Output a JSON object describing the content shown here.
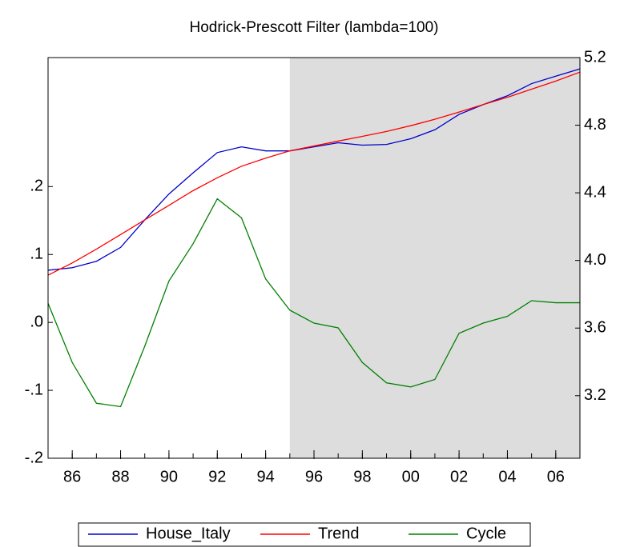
{
  "chart_data": {
    "type": "line",
    "title": "Hodrick-Prescott Filter (lambda=100)",
    "x": [
      1985,
      1986,
      1987,
      1988,
      1989,
      1990,
      1991,
      1992,
      1993,
      1994,
      1995,
      1996,
      1997,
      1998,
      1999,
      2000,
      2001,
      2002,
      2003,
      2004,
      2005,
      2006,
      2007
    ],
    "xlim": [
      1985,
      2007
    ],
    "xticks": [
      {
        "value": 1986,
        "label": "86"
      },
      {
        "value": 1988,
        "label": "88"
      },
      {
        "value": 1990,
        "label": "90"
      },
      {
        "value": 1992,
        "label": "92"
      },
      {
        "value": 1994,
        "label": "94"
      },
      {
        "value": 1996,
        "label": "96"
      },
      {
        "value": 1998,
        "label": "98"
      },
      {
        "value": 2000,
        "label": "00"
      },
      {
        "value": 2002,
        "label": "02"
      },
      {
        "value": 2004,
        "label": "04"
      },
      {
        "value": 2006,
        "label": "06"
      }
    ],
    "ylim": [
      -0.2,
      0.39
    ],
    "yticks": [
      {
        "value": -0.2,
        "label": "-.2"
      },
      {
        "value": -0.1,
        "label": "-.1"
      },
      {
        "value": 0,
        "label": ".0"
      },
      {
        "value": 0.1,
        "label": ".1"
      },
      {
        "value": 0.2,
        "label": ".2"
      }
    ],
    "y2lim": [
      2.83,
      5.2
    ],
    "y2ticks": [
      3.2,
      3.6,
      {
        "value": 4,
        "label": "4.0"
      },
      4.4,
      4.8,
      5.2
    ],
    "shaded_region": [
      1995,
      2007
    ],
    "shade_color": "#dddddd",
    "series": [
      {
        "name": "House_Italy",
        "color": "#0000cc",
        "axis": "y2",
        "values": [
          3.942,
          3.957,
          3.995,
          4.077,
          4.24,
          4.393,
          4.518,
          4.638,
          4.672,
          4.648,
          4.648,
          4.672,
          4.696,
          4.682,
          4.686,
          4.72,
          4.773,
          4.864,
          4.922,
          4.974,
          5.046,
          5.09,
          5.133
        ]
      },
      {
        "name": "Trend",
        "color": "#ff0000",
        "axis": "y2",
        "values": [
          3.913,
          3.985,
          4.067,
          4.153,
          4.24,
          4.326,
          4.413,
          4.489,
          4.557,
          4.605,
          4.648,
          4.677,
          4.706,
          4.734,
          4.763,
          4.797,
          4.835,
          4.878,
          4.922,
          4.965,
          5.013,
          5.061,
          5.114
        ]
      },
      {
        "name": "Cycle",
        "color": "#008000",
        "axis": "y",
        "values": [
          0.028,
          -0.059,
          -0.119,
          -0.124,
          -0.035,
          0.061,
          0.116,
          0.182,
          0.154,
          0.064,
          0.018,
          -0.001,
          -0.008,
          -0.059,
          -0.089,
          -0.095,
          -0.084,
          -0.016,
          -0.001,
          0.009,
          0.032,
          0.029,
          0.029
        ]
      }
    ]
  }
}
